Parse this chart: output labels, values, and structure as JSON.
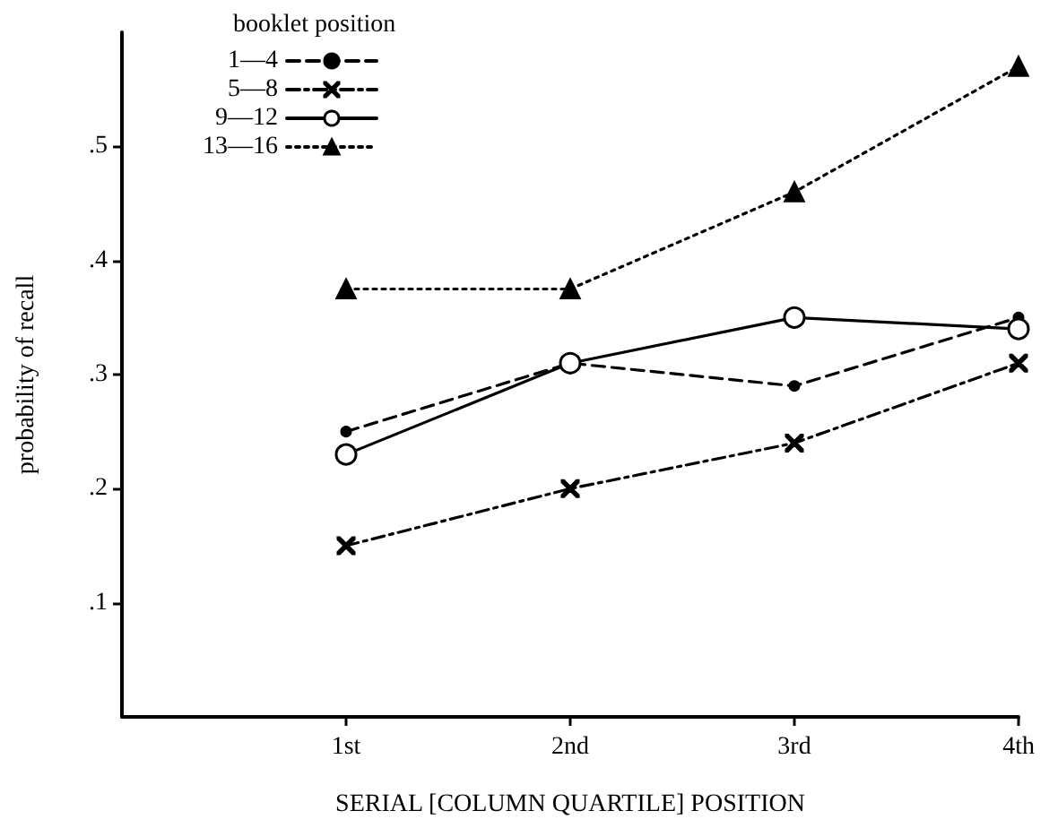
{
  "chart_data": {
    "type": "line",
    "xlabel": "SERIAL [COLUMN QUARTILE] POSITION",
    "ylabel": "probability of recall",
    "legend_title": "booklet position",
    "categories": [
      null,
      "1st",
      "2nd",
      "3rd",
      "4th"
    ],
    "series": [
      {
        "name": "1—4",
        "color": "#000000",
        "marker": "dot",
        "line_style": "dashed",
        "values": [
          null,
          0.25,
          0.31,
          0.29,
          0.35
        ]
      },
      {
        "name": "5—8",
        "color": "#000000",
        "marker": "cross",
        "line_style": "dashdot",
        "values": [
          null,
          0.15,
          0.2,
          0.24,
          0.31
        ]
      },
      {
        "name": "9—12",
        "color": "#000000",
        "marker": "circle",
        "line_style": "solid",
        "values": [
          null,
          0.23,
          0.31,
          0.35,
          0.34
        ]
      },
      {
        "name": "13—16",
        "color": "#000000",
        "marker": "triangle",
        "line_style": "dotted",
        "values": [
          null,
          0.375,
          0.375,
          0.46,
          0.57
        ]
      }
    ],
    "ylim": [
      0,
      0.6
    ],
    "yticks": [
      {
        "value": 0.1,
        "label": ".1"
      },
      {
        "value": 0.2,
        "label": ".2"
      },
      {
        "value": 0.3,
        "label": ".3"
      },
      {
        "value": 0.4,
        "label": ".4"
      },
      {
        "value": 0.5,
        "label": ".5"
      }
    ],
    "grid": false,
    "legend": "top left"
  }
}
